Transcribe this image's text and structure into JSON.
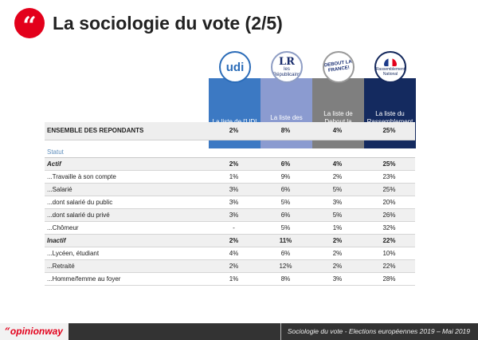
{
  "header": {
    "badge_glyph": "“",
    "title": "La sociologie du vote (2/5)"
  },
  "columns": [
    {
      "label": "La liste de l'UDI",
      "color": "#3c79c3",
      "logo_icon": "udi-logo-icon",
      "logo_text": "udi"
    },
    {
      "label": "La liste des Républicains",
      "color": "#8b9bd0",
      "logo_icon": "republicains-logo-icon",
      "logo_mark": "LR",
      "logo_text": "les Républicains"
    },
    {
      "label": "La liste de Debout la France",
      "color": "#7f7f7f",
      "logo_icon": "debout-la-france-logo-icon",
      "logo_text": "DEBOUT LA FRANCE!"
    },
    {
      "label": "La liste du Rassemblement National",
      "color": "#142a5f",
      "logo_icon": "rassemblement-national-logo-icon",
      "logo_text": "Rassemblement National"
    }
  ],
  "ensemble": {
    "label": "ENSEMBLE DES REPONDANTS",
    "values": [
      "2%",
      "8%",
      "4%",
      "25%"
    ]
  },
  "section_label": "Statut",
  "rows": [
    {
      "label": "Actif",
      "values": [
        "2%",
        "6%",
        "4%",
        "25%"
      ],
      "bold": true,
      "shaded": true
    },
    {
      "label": "...Travaille à son compte",
      "values": [
        "1%",
        "9%",
        "2%",
        "23%"
      ],
      "bold": false,
      "shaded": false
    },
    {
      "label": "...Salarié",
      "values": [
        "3%",
        "6%",
        "5%",
        "25%"
      ],
      "bold": false,
      "shaded": true
    },
    {
      "label": "...dont salarié du public",
      "values": [
        "3%",
        "5%",
        "3%",
        "20%"
      ],
      "bold": false,
      "shaded": false
    },
    {
      "label": "...dont salarié du privé",
      "values": [
        "3%",
        "6%",
        "5%",
        "26%"
      ],
      "bold": false,
      "shaded": true
    },
    {
      "label": "...Chômeur",
      "values": [
        "-",
        "5%",
        "1%",
        "32%"
      ],
      "bold": false,
      "shaded": false
    },
    {
      "label": "Inactif",
      "values": [
        "2%",
        "11%",
        "2%",
        "22%"
      ],
      "bold": true,
      "shaded": true
    },
    {
      "label": "...Lycéen, étudiant",
      "values": [
        "4%",
        "6%",
        "2%",
        "10%"
      ],
      "bold": false,
      "shaded": false
    },
    {
      "label": "...Retraité",
      "values": [
        "2%",
        "12%",
        "2%",
        "22%"
      ],
      "bold": false,
      "shaded": true
    },
    {
      "label": "...Homme/femme au foyer",
      "values": [
        "1%",
        "8%",
        "3%",
        "28%"
      ],
      "bold": false,
      "shaded": false
    }
  ],
  "footer": {
    "brand_quote": "“",
    "brand_prefix": "opinion",
    "brand_suffix": "way",
    "caption": "Sociologie du vote - Elections européennes 2019 – Mai 2019"
  }
}
